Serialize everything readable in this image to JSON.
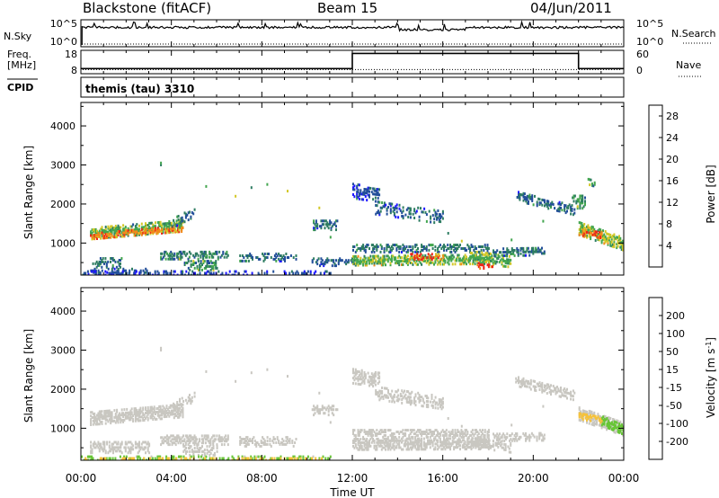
{
  "header": {
    "station": "Blackstone (fitACF)",
    "beam": "Beam 15",
    "date": "04/Jun/2011"
  },
  "chart_data": [
    {
      "type": "line",
      "panel": "noise",
      "left_labels": [
        "N.Sky"
      ],
      "right_labels": [
        "N.Search"
      ],
      "left_ticks": [
        "10^5",
        "10^0"
      ],
      "right_ticks": [
        "10^5",
        "10^0"
      ],
      "series": [
        {
          "name": "N.Sky",
          "style": "solid",
          "level": 0.45
        },
        {
          "name": "N.Search",
          "style": "dotted"
        }
      ]
    },
    {
      "type": "line",
      "panel": "frequency",
      "left_labels": [
        "Freq.",
        "[MHz]"
      ],
      "right_labels": [
        "Nave"
      ],
      "left_ticks": [
        "18",
        "8"
      ],
      "right_ticks": [
        "60",
        "0"
      ],
      "series": [
        {
          "name": "Freq.",
          "style": "solid",
          "x": [
            0,
            12,
            12,
            22,
            22,
            24
          ],
          "y": [
            10.2,
            10.2,
            16.7,
            16.7,
            10.2,
            10.2
          ]
        },
        {
          "name": "Nave",
          "style": "dotted",
          "level": 0.18
        }
      ]
    },
    {
      "type": "table",
      "panel": "cpid",
      "label": "CPID",
      "text": "themis (tau) 3310"
    },
    {
      "type": "heatmap",
      "panel": "power",
      "ylabel": "Slant Range [km]",
      "ylim": [
        180,
        4600
      ],
      "yticks": [
        "1000",
        "2000",
        "3000",
        "4000"
      ],
      "ytick_values": [
        1000,
        2000,
        3000,
        4000
      ],
      "colorbar_label": "Power [dB]",
      "colorbar_ticks": [
        "4",
        "8",
        "12",
        "16",
        "20",
        "24",
        "28"
      ],
      "colorbar_values": [
        4,
        8,
        12,
        16,
        20,
        24,
        28
      ],
      "colorbar_range": [
        0,
        30
      ],
      "colorbar_colors": [
        "#1d17ff",
        "#234f9a",
        "#2e7d62",
        "#44a650",
        "#d3c828",
        "#f18a1a",
        "#ee2518"
      ],
      "regions": [
        {
          "t": [
            0.4,
            4.5
          ],
          "r0": 1250,
          "r1": 1450,
          "th": 140,
          "v": 14,
          "d": 0.7
        },
        {
          "t": [
            0.4,
            4.5
          ],
          "r0": 1180,
          "r1": 1380,
          "th": 80,
          "v": 22,
          "d": 0.6
        },
        {
          "t": [
            4.0,
            5.0
          ],
          "r0": 1500,
          "r1": 1800,
          "th": 120,
          "v": 8,
          "d": 0.35
        },
        {
          "t": [
            0.5,
            1.8
          ],
          "r0": 500,
          "r1": 500,
          "th": 120,
          "v": 9,
          "d": 0.35
        },
        {
          "t": [
            0.3,
            3.0
          ],
          "r0": 280,
          "r1": 280,
          "th": 80,
          "v": 6,
          "d": 0.35
        },
        {
          "t": [
            3.5,
            6.5
          ],
          "r0": 700,
          "r1": 700,
          "th": 110,
          "v": 10,
          "d": 0.5
        },
        {
          "t": [
            4.5,
            6.0
          ],
          "r0": 430,
          "r1": 430,
          "th": 120,
          "v": 11,
          "d": 0.45
        },
        {
          "t": [
            7.0,
            9.5
          ],
          "r0": 650,
          "r1": 650,
          "th": 110,
          "v": 8,
          "d": 0.35
        },
        {
          "t": [
            10.2,
            11.3
          ],
          "r0": 1470,
          "r1": 1470,
          "th": 130,
          "v": 8,
          "d": 0.45
        },
        {
          "t": [
            10.2,
            12.2
          ],
          "r0": 520,
          "r1": 520,
          "th": 100,
          "v": 7,
          "d": 0.3
        },
        {
          "t": [
            12.0,
            13.2
          ],
          "r0": 2350,
          "r1": 2250,
          "th": 200,
          "v": 6,
          "d": 0.45
        },
        {
          "t": [
            13.0,
            16.0
          ],
          "r0": 1900,
          "r1": 1650,
          "th": 160,
          "v": 7,
          "d": 0.35
        },
        {
          "t": [
            12.0,
            18.0
          ],
          "r0": 880,
          "r1": 880,
          "th": 110,
          "v": 9,
          "d": 0.5
        },
        {
          "t": [
            12.0,
            18.0
          ],
          "r0": 560,
          "r1": 600,
          "th": 130,
          "v": 15,
          "d": 0.65
        },
        {
          "t": [
            14.5,
            16.0
          ],
          "r0": 650,
          "r1": 650,
          "th": 70,
          "v": 24,
          "d": 0.45
        },
        {
          "t": [
            17.2,
            19.0
          ],
          "r0": 660,
          "r1": 520,
          "th": 140,
          "v": 14,
          "d": 0.6
        },
        {
          "t": [
            17.5,
            18.2
          ],
          "r0": 420,
          "r1": 420,
          "th": 70,
          "v": 26,
          "d": 0.45
        },
        {
          "t": [
            18.2,
            20.5
          ],
          "r0": 780,
          "r1": 800,
          "th": 110,
          "v": 9,
          "d": 0.45
        },
        {
          "t": [
            19.2,
            21.8
          ],
          "r0": 2220,
          "r1": 1850,
          "th": 130,
          "v": 8,
          "d": 0.5
        },
        {
          "t": [
            21.7,
            22.3
          ],
          "r0": 2050,
          "r1": 2050,
          "th": 160,
          "v": 12,
          "d": 0.5
        },
        {
          "t": [
            22.0,
            24.0
          ],
          "r0": 1380,
          "r1": 980,
          "th": 170,
          "v": 16,
          "d": 0.7
        },
        {
          "t": [
            22.0,
            23.0
          ],
          "r0": 1280,
          "r1": 1200,
          "th": 70,
          "v": 24,
          "d": 0.5
        },
        {
          "t": [
            22.4,
            22.7
          ],
          "r0": 2600,
          "r1": 2550,
          "th": 100,
          "v": 14,
          "d": 0.4
        },
        {
          "t": [
            0.0,
            11.0
          ],
          "r0": 230,
          "r1": 230,
          "th": 50,
          "v": 5,
          "d": 0.3
        }
      ]
    },
    {
      "type": "heatmap",
      "panel": "velocity",
      "ylabel": "Slant Range [km]",
      "ylim": [
        180,
        4600
      ],
      "yticks": [
        "1000",
        "2000",
        "3000",
        "4000"
      ],
      "ytick_values": [
        1000,
        2000,
        3000,
        4000
      ],
      "xlabel": "Time UT",
      "xlim": [
        0,
        24
      ],
      "xticks": [
        "00:00",
        "04:00",
        "08:00",
        "12:00",
        "16:00",
        "20:00",
        "00:00"
      ],
      "xtick_values": [
        0,
        4,
        8,
        12,
        16,
        20,
        24
      ],
      "colorbar_label": "Velocity [m s-1]",
      "colorbar_ticks": [
        "-200",
        "-100",
        "-50",
        "-15",
        "15",
        "50",
        "100",
        "200"
      ],
      "colorbar_values": [
        -200,
        -100,
        -50,
        -15,
        15,
        50,
        100,
        200
      ],
      "colorbar_colors": [
        "#e8131a",
        "#f25a16",
        "#f08c16",
        "#f6c23a",
        "#c9c7c1",
        "#68c537",
        "#2f8f5a",
        "#2450a8",
        "#1a2ad2"
      ],
      "regions": [
        {
          "t": [
            0.4,
            4.5
          ],
          "r0": 1260,
          "r1": 1460,
          "th": 170,
          "v": 0,
          "d": 0.78
        },
        {
          "t": [
            4.0,
            5.0
          ],
          "r0": 1550,
          "r1": 1800,
          "th": 120,
          "v": 0,
          "d": 0.4
        },
        {
          "t": [
            0.4,
            3.0
          ],
          "r0": 520,
          "r1": 520,
          "th": 150,
          "v": 0,
          "d": 0.55
        },
        {
          "t": [
            3.5,
            6.5
          ],
          "r0": 700,
          "r1": 700,
          "th": 120,
          "v": 0,
          "d": 0.6
        },
        {
          "t": [
            4.5,
            6.0
          ],
          "r0": 430,
          "r1": 430,
          "th": 120,
          "v": 0,
          "d": 0.45
        },
        {
          "t": [
            7.0,
            9.5
          ],
          "r0": 660,
          "r1": 660,
          "th": 120,
          "v": 0,
          "d": 0.45
        },
        {
          "t": [
            10.2,
            11.3
          ],
          "r0": 1470,
          "r1": 1470,
          "th": 130,
          "v": 0,
          "d": 0.5
        },
        {
          "t": [
            12.0,
            13.2
          ],
          "r0": 2350,
          "r1": 2250,
          "th": 200,
          "v": 0,
          "d": 0.55
        },
        {
          "t": [
            13.0,
            16.0
          ],
          "r0": 1900,
          "r1": 1650,
          "th": 160,
          "v": 0,
          "d": 0.45
        },
        {
          "t": [
            12.0,
            18.0
          ],
          "r0": 880,
          "r1": 880,
          "th": 110,
          "v": 0,
          "d": 0.55
        },
        {
          "t": [
            12.0,
            18.0
          ],
          "r0": 600,
          "r1": 620,
          "th": 150,
          "v": 0,
          "d": 0.7
        },
        {
          "t": [
            17.2,
            19.0
          ],
          "r0": 660,
          "r1": 520,
          "th": 140,
          "v": 0,
          "d": 0.65
        },
        {
          "t": [
            18.2,
            20.5
          ],
          "r0": 780,
          "r1": 800,
          "th": 110,
          "v": 0,
          "d": 0.5
        },
        {
          "t": [
            19.2,
            21.8
          ],
          "r0": 2220,
          "r1": 1850,
          "th": 130,
          "v": 0,
          "d": 0.6
        },
        {
          "t": [
            22.0,
            24.0
          ],
          "r0": 1380,
          "r1": 980,
          "th": 170,
          "v": 0,
          "d": 0.7
        },
        {
          "t": [
            23.0,
            24.0
          ],
          "r0": 1200,
          "r1": 950,
          "th": 120,
          "v": 40,
          "d": 0.75
        },
        {
          "t": [
            22.0,
            23.0
          ],
          "r0": 1320,
          "r1": 1220,
          "th": 80,
          "v": -40,
          "d": 0.6
        },
        {
          "t": [
            0.0,
            11.0
          ],
          "r0": 230,
          "r1": 230,
          "th": 50,
          "v": 20,
          "d": 0.35
        },
        {
          "t": [
            0.0,
            11.0
          ],
          "r0": 220,
          "r1": 220,
          "th": 40,
          "v": -40,
          "d": 0.25
        }
      ]
    }
  ]
}
